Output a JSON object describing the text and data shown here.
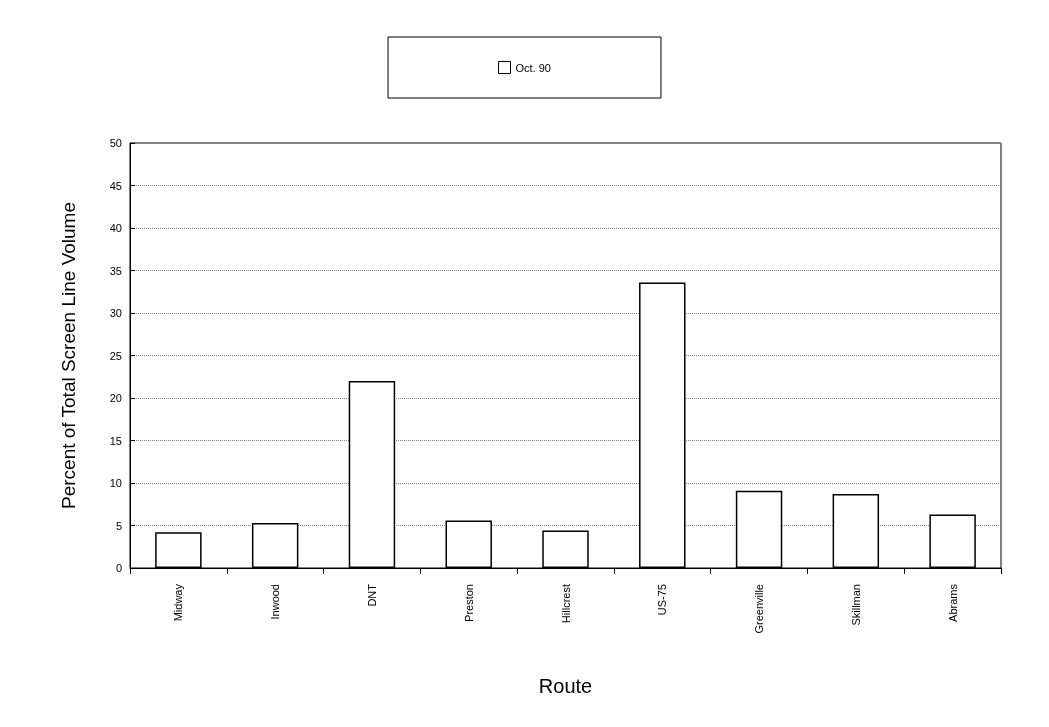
{
  "chart_data": {
    "type": "bar",
    "xlabel": "Route",
    "ylabel": "Percent of Total Screen Line Volume",
    "categories": [
      "Midway",
      "Inwood",
      "DNT",
      "Preston",
      "Hillcrest",
      "US-75",
      "Greenville",
      "Skillman",
      "Abrams"
    ],
    "series": [
      {
        "name": "Oct. 90",
        "color": "#ffffff",
        "values": [
          4.2,
          5.3,
          22.0,
          5.6,
          4.4,
          33.6,
          9.1,
          8.7,
          6.3
        ]
      }
    ],
    "ylim": [
      0,
      50
    ],
    "yticks": [
      0,
      5,
      10,
      15,
      20,
      25,
      30,
      35,
      40,
      45,
      50
    ],
    "grid": "y",
    "legend": "top",
    "line_style": "dotted"
  }
}
